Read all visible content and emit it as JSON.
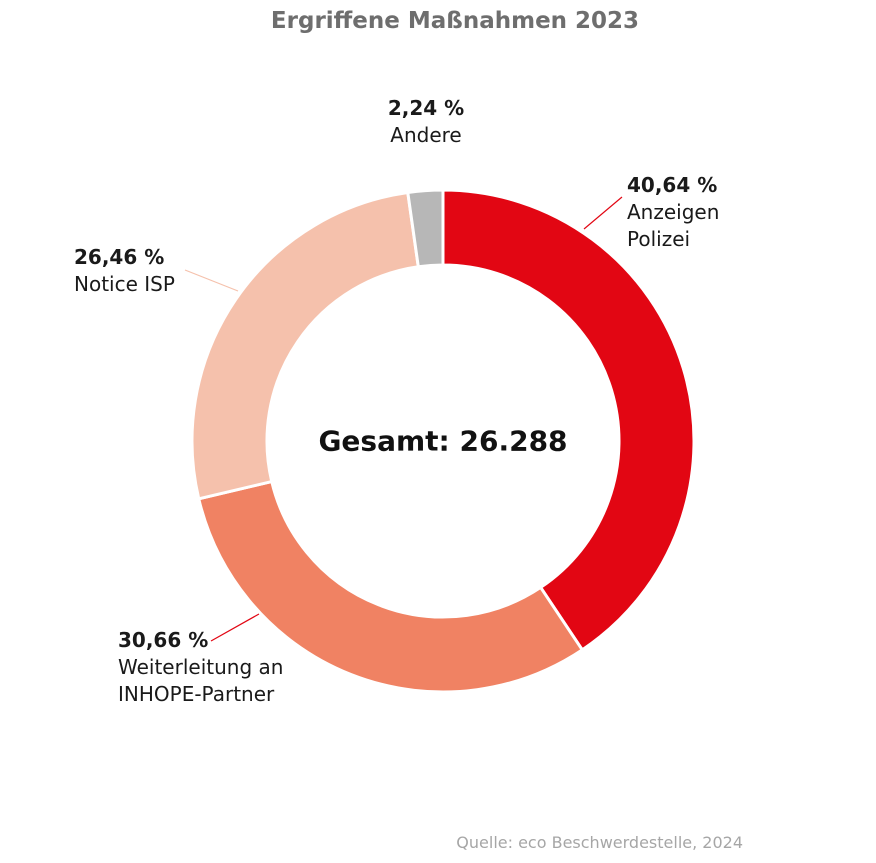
{
  "chart_data": {
    "type": "pie",
    "title": "Ergriffene Maßnahmen 2023",
    "center_label": "Gesamt: 26.288",
    "categories": [
      "Anzeigen\nPolizei",
      "Weiterleitung an\nINHOPE-Partner",
      "Notice ISP",
      "Andere"
    ],
    "percent_labels": [
      "40,64 %",
      "30,66 %",
      "26,46 %",
      "2,24 %"
    ],
    "values": [
      40.64,
      30.66,
      26.46,
      2.24
    ],
    "colors": [
      "#e20613",
      "#f08263",
      "#f5c1ac",
      "#b7b7b7"
    ],
    "donut": true
  },
  "source": "Quelle: eco Beschwerdestelle, 2024"
}
